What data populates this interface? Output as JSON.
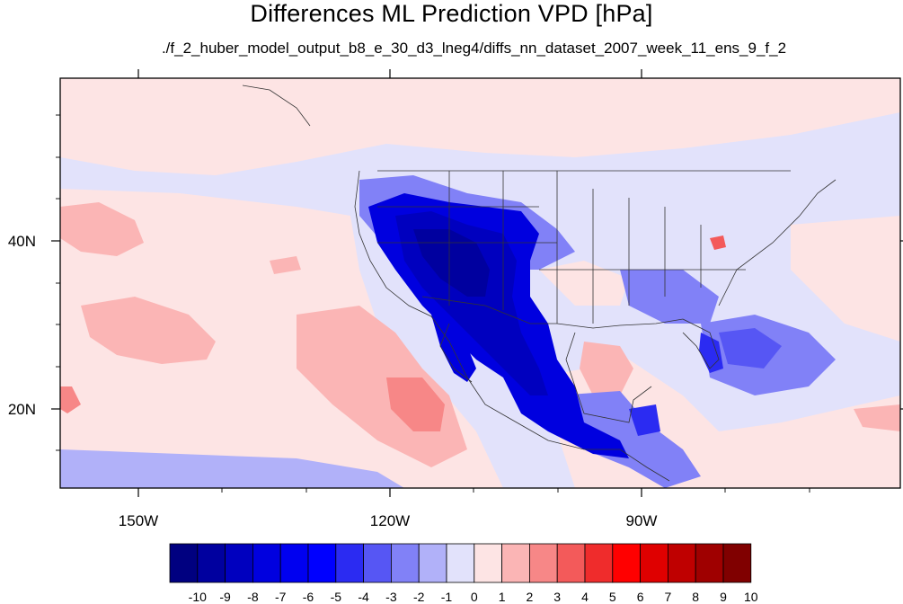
{
  "title": "Differences ML Prediction VPD [hPa]",
  "subtitle": "./f_2_huber_model_output_b8_e_30_d3_lneg4/diffs_nn_dataset_2007_week_11_ens_9_f_2",
  "x_ticks": [
    "150W",
    "120W",
    "90W"
  ],
  "y_ticks": [
    "40N",
    "20N"
  ],
  "colorbar": {
    "labels": [
      "-10",
      "-9",
      "-8",
      "-7",
      "-6",
      "-5",
      "-4",
      "-3",
      "-2",
      "-1",
      "0",
      "1",
      "2",
      "3",
      "4",
      "5",
      "6",
      "7",
      "8",
      "9",
      "10"
    ],
    "colors": [
      "#000080",
      "#00009f",
      "#0000bf",
      "#0000df",
      "#0000f0",
      "#0000ff",
      "#2b2bf2",
      "#5656f4",
      "#8181f7",
      "#b1b1f9",
      "#e2e2fb",
      "#fde4e4",
      "#fbb5b5",
      "#f78787",
      "#f35a5a",
      "#ef2c2c",
      "#ff0000",
      "#df0000",
      "#bf0000",
      "#9f0000",
      "#800000"
    ]
  }
}
